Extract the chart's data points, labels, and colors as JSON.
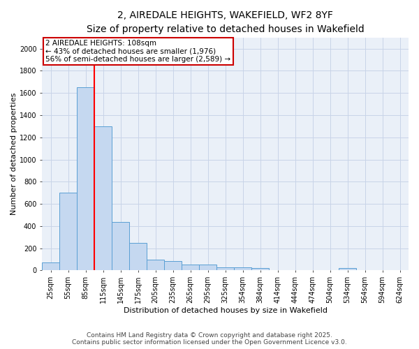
{
  "title_line1": "2, AIREDALE HEIGHTS, WAKEFIELD, WF2 8YF",
  "title_line2": "Size of property relative to detached houses in Wakefield",
  "xlabel": "Distribution of detached houses by size in Wakefield",
  "ylabel": "Number of detached properties",
  "bin_labels": [
    "25sqm",
    "55sqm",
    "85sqm",
    "115sqm",
    "145sqm",
    "175sqm",
    "205sqm",
    "235sqm",
    "265sqm",
    "295sqm",
    "325sqm",
    "354sqm",
    "384sqm",
    "414sqm",
    "444sqm",
    "474sqm",
    "504sqm",
    "534sqm",
    "564sqm",
    "594sqm",
    "624sqm"
  ],
  "bar_values": [
    70,
    700,
    1650,
    1300,
    440,
    250,
    95,
    85,
    50,
    50,
    30,
    25,
    20,
    0,
    0,
    0,
    0,
    20,
    0,
    0,
    0
  ],
  "bar_color": "#c5d8f0",
  "bar_edge_color": "#5a9fd4",
  "red_line_bin": 3,
  "annotation_line1": "2 AIREDALE HEIGHTS: 108sqm",
  "annotation_line2": "← 43% of detached houses are smaller (1,976)",
  "annotation_line3": "56% of semi-detached houses are larger (2,589) →",
  "annotation_box_color": "#ffffff",
  "annotation_box_edge": "#cc0000",
  "ylim": [
    0,
    2100
  ],
  "yticks": [
    0,
    200,
    400,
    600,
    800,
    1000,
    1200,
    1400,
    1600,
    1800,
    2000
  ],
  "grid_color": "#c8d4e8",
  "background_color": "#eaf0f8",
  "footer_line1": "Contains HM Land Registry data © Crown copyright and database right 2025.",
  "footer_line2": "Contains public sector information licensed under the Open Government Licence v3.0.",
  "title_fontsize": 10,
  "subtitle_fontsize": 9,
  "axis_label_fontsize": 8,
  "tick_fontsize": 7,
  "annotation_fontsize": 7.5,
  "footer_fontsize": 6.5
}
